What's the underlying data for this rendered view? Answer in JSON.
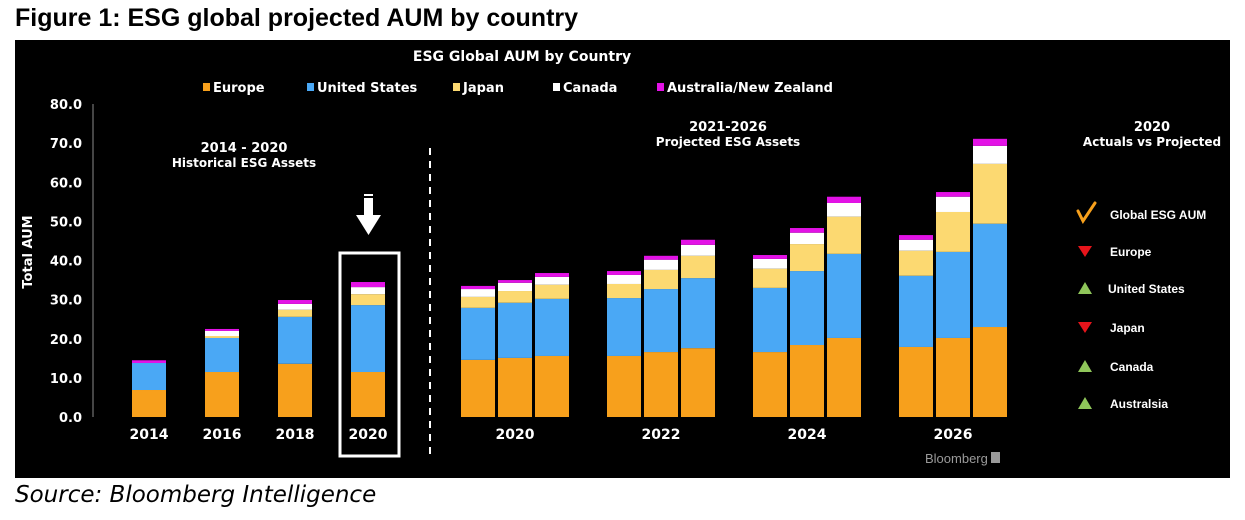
{
  "figure_title": "Figure 1: ESG global projected AUM by country",
  "source": "Source: Bloomberg Intelligence",
  "watermark": "Bloomberg",
  "chart_data": {
    "type": "bar",
    "stacked": true,
    "title": "ESG Global AUM by Country",
    "ylabel": "Total AUM",
    "xlabel": "",
    "ylim": [
      0,
      80
    ],
    "yticks": [
      "0.0",
      "10.0",
      "20.0",
      "30.0",
      "40.0",
      "50.0",
      "60.0",
      "70.0",
      "80.0"
    ],
    "legend_position": "top",
    "series": [
      {
        "name": "Europe",
        "color": "#f7a01c"
      },
      {
        "name": "United States",
        "color": "#4aa8f5"
      },
      {
        "name": "Japan",
        "color": "#fcd971"
      },
      {
        "name": "Canada",
        "color": "#ffffff"
      },
      {
        "name": "Australia/New Zealand",
        "color": "#e312e6"
      }
    ],
    "historical": {
      "label_line1": "2014 - 2020",
      "label_line2": "Historical ESG Assets",
      "categories": [
        "2014",
        "2016",
        "2018",
        "2020"
      ],
      "highlight": "2020",
      "values": {
        "Europe": [
          6.9,
          11.5,
          13.6,
          11.5
        ],
        "United States": [
          6.9,
          8.7,
          12.0,
          17.1
        ],
        "Japan": [
          0.0,
          0.5,
          1.8,
          2.8
        ],
        "Canada": [
          0.0,
          1.3,
          1.5,
          1.8
        ],
        "Australia/New Zealand": [
          0.7,
          0.5,
          1.0,
          1.3
        ]
      }
    },
    "projected": {
      "label_line1": "2021-2026",
      "label_line2": "Projected ESG Assets",
      "categories": [
        "2020",
        "2022",
        "2024",
        "2026"
      ],
      "bars_per_category": 3,
      "values": {
        "Europe": [
          14.6,
          15.1,
          15.6,
          15.6,
          16.6,
          17.6,
          16.6,
          18.4,
          20.2,
          17.9,
          20.2,
          23.0
        ],
        "United States": [
          13.3,
          14.1,
          14.6,
          14.8,
          16.1,
          17.9,
          16.4,
          18.9,
          21.5,
          18.2,
          22.0,
          26.4
        ],
        "Japan": [
          2.8,
          3.0,
          3.6,
          3.6,
          4.9,
          5.7,
          4.9,
          6.9,
          9.5,
          6.4,
          10.2,
          15.3
        ],
        "Canada": [
          2.0,
          2.1,
          2.0,
          2.3,
          2.6,
          2.8,
          2.5,
          2.9,
          3.5,
          2.8,
          3.9,
          4.6
        ],
        "Australia/New Zealand": [
          0.8,
          0.7,
          1.0,
          1.0,
          1.0,
          1.3,
          1.0,
          1.2,
          1.6,
          1.2,
          1.2,
          1.8
        ]
      }
    },
    "side_panel": {
      "title_line1": "2020",
      "title_line2": "Actuals vs Projected",
      "items": [
        {
          "label": "Global ESG AUM",
          "icon": "check-icon",
          "color": "#f7a01c"
        },
        {
          "label": "Europe",
          "icon": "triangle-down-icon",
          "color": "#e8141b"
        },
        {
          "label": "United States",
          "icon": "triangle-up-icon",
          "color": "#8fc65a"
        },
        {
          "label": "Japan",
          "icon": "triangle-down-icon",
          "color": "#e8141b"
        },
        {
          "label": "Canada",
          "icon": "triangle-up-icon",
          "color": "#8fc65a"
        },
        {
          "label": "Australsia",
          "icon": "triangle-up-icon",
          "color": "#8fc65a"
        }
      ]
    }
  }
}
